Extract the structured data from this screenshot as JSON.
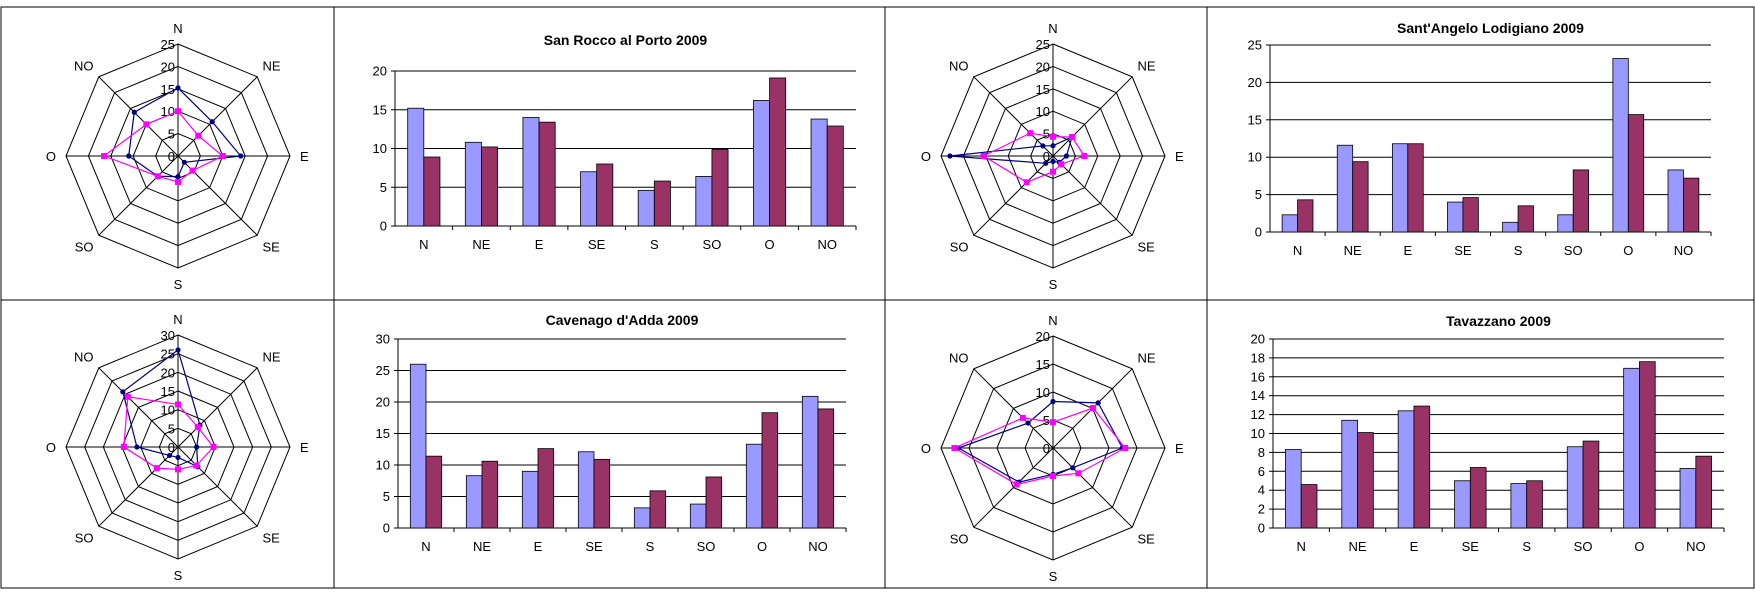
{
  "colors": {
    "blue_series": "#9999ff",
    "maroon_series": "#993366",
    "radar_line_a": "#000080",
    "radar_line_b": "#ff00ff",
    "grid": "#000000"
  },
  "chart_data": [
    {
      "type": "radar",
      "directions": [
        "N",
        "NE",
        "E",
        "SE",
        "S",
        "SO",
        "O",
        "NO"
      ],
      "ticks": [
        "0",
        "5",
        "10",
        "15",
        "20",
        "25"
      ],
      "rmax": 25,
      "series": [
        {
          "values": [
            15.2,
            10.8,
            14.0,
            2.0,
            4.6,
            6.4,
            11.0,
            13.8
          ]
        },
        {
          "values": [
            10.0,
            6.4,
            10.0,
            4.6,
            5.8,
            6.4,
            16.5,
            10.0
          ]
        }
      ]
    },
    {
      "type": "bar",
      "title": "San Rocco al Porto 2009",
      "categories": [
        "N",
        "NE",
        "E",
        "SE",
        "S",
        "SO",
        "O",
        "NO"
      ],
      "yticks": [
        "0",
        "5",
        "10",
        "15",
        "20"
      ],
      "ylim": [
        0,
        20
      ],
      "series": [
        {
          "values": [
            15.2,
            10.8,
            14.0,
            7.0,
            4.6,
            6.4,
            16.2,
            13.8
          ]
        },
        {
          "values": [
            8.9,
            10.2,
            13.4,
            8.0,
            5.8,
            9.9,
            19.1,
            12.9
          ]
        }
      ]
    },
    {
      "type": "radar",
      "directions": [
        "N",
        "NE",
        "E",
        "SE",
        "S",
        "SO",
        "O",
        "NO"
      ],
      "ticks": [
        "0",
        "5",
        "10",
        "15",
        "20",
        "25"
      ],
      "rmax": 25,
      "series": [
        {
          "values": [
            2.3,
            6.0,
            3.0,
            2.0,
            1.2,
            2.3,
            23.0,
            3.2
          ]
        },
        {
          "values": [
            4.3,
            6.0,
            7.0,
            2.6,
            3.5,
            8.3,
            15.5,
            7.2
          ]
        }
      ]
    },
    {
      "type": "bar",
      "title": "Sant'Angelo Lodigiano 2009",
      "categories": [
        "N",
        "NE",
        "E",
        "SE",
        "S",
        "SO",
        "O",
        "NO"
      ],
      "yticks": [
        "0",
        "5",
        "10",
        "15",
        "20",
        "25"
      ],
      "ylim": [
        0,
        25
      ],
      "series": [
        {
          "values": [
            2.3,
            11.6,
            11.8,
            4.0,
            1.3,
            2.3,
            23.2,
            8.3
          ]
        },
        {
          "values": [
            4.3,
            9.4,
            11.8,
            4.6,
            3.5,
            8.3,
            15.7,
            7.2
          ]
        }
      ]
    },
    {
      "type": "radar",
      "directions": [
        "N",
        "NE",
        "E",
        "SE",
        "S",
        "SO",
        "O",
        "NO"
      ],
      "ticks": [
        "0",
        "5",
        "10",
        "15",
        "20",
        "25",
        "30"
      ],
      "rmax": 30,
      "series": [
        {
          "values": [
            26.0,
            8.3,
            5.0,
            7.5,
            2.8,
            3.2,
            11.0,
            20.9
          ]
        },
        {
          "values": [
            11.4,
            7.5,
            9.5,
            7.0,
            6.0,
            8.0,
            14.5,
            19.0
          ]
        }
      ]
    },
    {
      "type": "bar",
      "title": "Cavenago d'Adda 2009",
      "categories": [
        "N",
        "NE",
        "E",
        "SE",
        "S",
        "SO",
        "O",
        "NO"
      ],
      "yticks": [
        "0",
        "5",
        "10",
        "15",
        "20",
        "25",
        "30"
      ],
      "ylim": [
        0,
        30
      ],
      "series": [
        {
          "values": [
            26.0,
            8.3,
            9.0,
            12.1,
            3.2,
            3.8,
            13.3,
            20.9
          ]
        },
        {
          "values": [
            11.4,
            10.6,
            12.6,
            10.9,
            5.9,
            8.1,
            18.3,
            18.9
          ]
        }
      ]
    },
    {
      "type": "radar",
      "directions": [
        "N",
        "NE",
        "E",
        "SE",
        "S",
        "SO",
        "O",
        "NO"
      ],
      "ticks": [
        "0",
        "5",
        "10",
        "15",
        "20"
      ],
      "rmax": 20,
      "series": [
        {
          "values": [
            8.3,
            11.4,
            12.4,
            5.0,
            4.7,
            8.6,
            16.9,
            6.3
          ]
        },
        {
          "values": [
            4.6,
            10.1,
            12.9,
            6.4,
            5.0,
            9.2,
            17.6,
            7.6
          ]
        }
      ]
    },
    {
      "type": "bar",
      "title": "Tavazzano 2009",
      "categories": [
        "N",
        "NE",
        "E",
        "SE",
        "S",
        "SO",
        "O",
        "NO"
      ],
      "yticks": [
        "0",
        "2",
        "4",
        "6",
        "8",
        "10",
        "12",
        "14",
        "16",
        "18",
        "20"
      ],
      "ylim": [
        0,
        20
      ],
      "series": [
        {
          "values": [
            8.3,
            11.4,
            12.4,
            5.0,
            4.7,
            8.6,
            16.9,
            6.3
          ]
        },
        {
          "values": [
            4.6,
            10.1,
            12.9,
            6.4,
            5.0,
            9.2,
            17.6,
            7.6
          ]
        }
      ]
    }
  ]
}
